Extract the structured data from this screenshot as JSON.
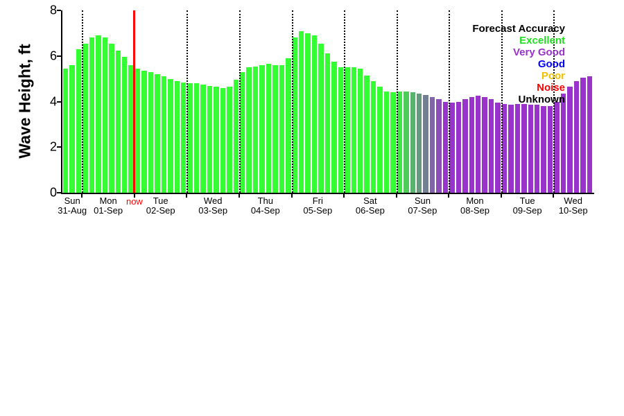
{
  "now_label": "now",
  "legend": {
    "title": "Forecast Accuracy",
    "entries": [
      {
        "label": "Excellent",
        "color": "#22dd22"
      },
      {
        "label": "Very Good",
        "color": "#9933cc"
      },
      {
        "label": "Good",
        "color": "#0000ff"
      },
      {
        "label": "Poor",
        "color": "#f0c000"
      },
      {
        "label": "Noise",
        "color": "#ff0000"
      },
      {
        "label": "Unknown",
        "color": "#000000"
      }
    ]
  },
  "chart_data": {
    "type": "bar",
    "title": "",
    "xlabel": "",
    "ylabel": "Wave Height, ft",
    "ylim": [
      0,
      8
    ],
    "yticks": [
      0,
      2,
      4,
      6,
      8
    ],
    "bar_interval_hours": 3,
    "grid": "vertical dotted lines at day boundaries",
    "legend_position": "top-right inside plot",
    "days": [
      {
        "weekday": "Sun",
        "date": "31-Aug",
        "bars": 3
      },
      {
        "weekday": "Mon",
        "date": "01-Sep",
        "bars": 8
      },
      {
        "weekday": "Tue",
        "date": "02-Sep",
        "bars": 8
      },
      {
        "weekday": "Wed",
        "date": "03-Sep",
        "bars": 8
      },
      {
        "weekday": "Thu",
        "date": "04-Sep",
        "bars": 8
      },
      {
        "weekday": "Fri",
        "date": "05-Sep",
        "bars": 8
      },
      {
        "weekday": "Sat",
        "date": "06-Sep",
        "bars": 8
      },
      {
        "weekday": "Sun",
        "date": "07-Sep",
        "bars": 8
      },
      {
        "weekday": "Mon",
        "date": "08-Sep",
        "bars": 8
      },
      {
        "weekday": "Tue",
        "date": "09-Sep",
        "bars": 8
      },
      {
        "weekday": "Wed",
        "date": "10-Sep",
        "bars": 6
      }
    ],
    "values": [
      5.45,
      5.6,
      6.3,
      6.55,
      6.8,
      6.9,
      6.8,
      6.55,
      6.25,
      5.95,
      5.6,
      5.45,
      5.35,
      5.3,
      5.2,
      5.1,
      5.0,
      4.9,
      4.85,
      4.8,
      4.8,
      4.75,
      4.7,
      4.65,
      4.6,
      4.65,
      4.95,
      5.3,
      5.5,
      5.55,
      5.6,
      5.65,
      5.6,
      5.6,
      5.9,
      6.8,
      7.1,
      7.0,
      6.9,
      6.55,
      6.1,
      5.75,
      5.5,
      5.5,
      5.5,
      5.45,
      5.15,
      4.9,
      4.65,
      4.45,
      4.4,
      4.45,
      4.45,
      4.4,
      4.35,
      4.3,
      4.2,
      4.1,
      4.0,
      3.95,
      4.0,
      4.1,
      4.2,
      4.25,
      4.2,
      4.1,
      3.95,
      3.9,
      3.85,
      3.9,
      3.9,
      3.85,
      3.85,
      3.8,
      3.8,
      4.0,
      4.35,
      4.65,
      4.9,
      5.05,
      5.1
    ],
    "bar_colors": [
      "#33ff33",
      "#33ff33",
      "#33ff33",
      "#33ff33",
      "#33ff33",
      "#33ff33",
      "#33ff33",
      "#33ff33",
      "#33ff33",
      "#33ff33",
      "#33ff33",
      "#33ff33",
      "#33ff33",
      "#33ff33",
      "#33ff33",
      "#33ff33",
      "#33ff33",
      "#33ff33",
      "#33ff33",
      "#33ff33",
      "#33ff33",
      "#33ff33",
      "#33ff33",
      "#33ff33",
      "#33ff33",
      "#33ff33",
      "#33ff33",
      "#33ff33",
      "#33ff33",
      "#33ff33",
      "#33ff33",
      "#33ff33",
      "#33ff33",
      "#33ff33",
      "#33ff33",
      "#33ff33",
      "#33ff33",
      "#33ff33",
      "#33ff33",
      "#33ff33",
      "#33ff33",
      "#33ff33",
      "#33ff33",
      "#33ff33",
      "#33ff33",
      "#33ff33",
      "#33ff33",
      "#33ff33",
      "#33ff33",
      "#33ff33",
      "#33ff33",
      "#40e646",
      "#4dcc59",
      "#59b36c",
      "#669980",
      "#738093",
      "#8066a6",
      "#8c4db9",
      "#9933cc",
      "#9933cc",
      "#9933cc",
      "#9933cc",
      "#9933cc",
      "#9933cc",
      "#9933cc",
      "#9933cc",
      "#9933cc",
      "#9933cc",
      "#9933cc",
      "#9933cc",
      "#9933cc",
      "#9933cc",
      "#9933cc",
      "#9933cc",
      "#9933cc",
      "#9933cc",
      "#9933cc",
      "#9933cc",
      "#9933cc",
      "#9933cc",
      "#9933cc"
    ],
    "now_line": {
      "after_bars": 11,
      "color": "#ff0000"
    },
    "accuracy_colors": {
      "excellent": "#33ff33",
      "very_good": "#9933cc",
      "good": "#0000ff",
      "poor": "#f0c000",
      "noise": "#ff0000",
      "unknown": "#000000"
    }
  }
}
